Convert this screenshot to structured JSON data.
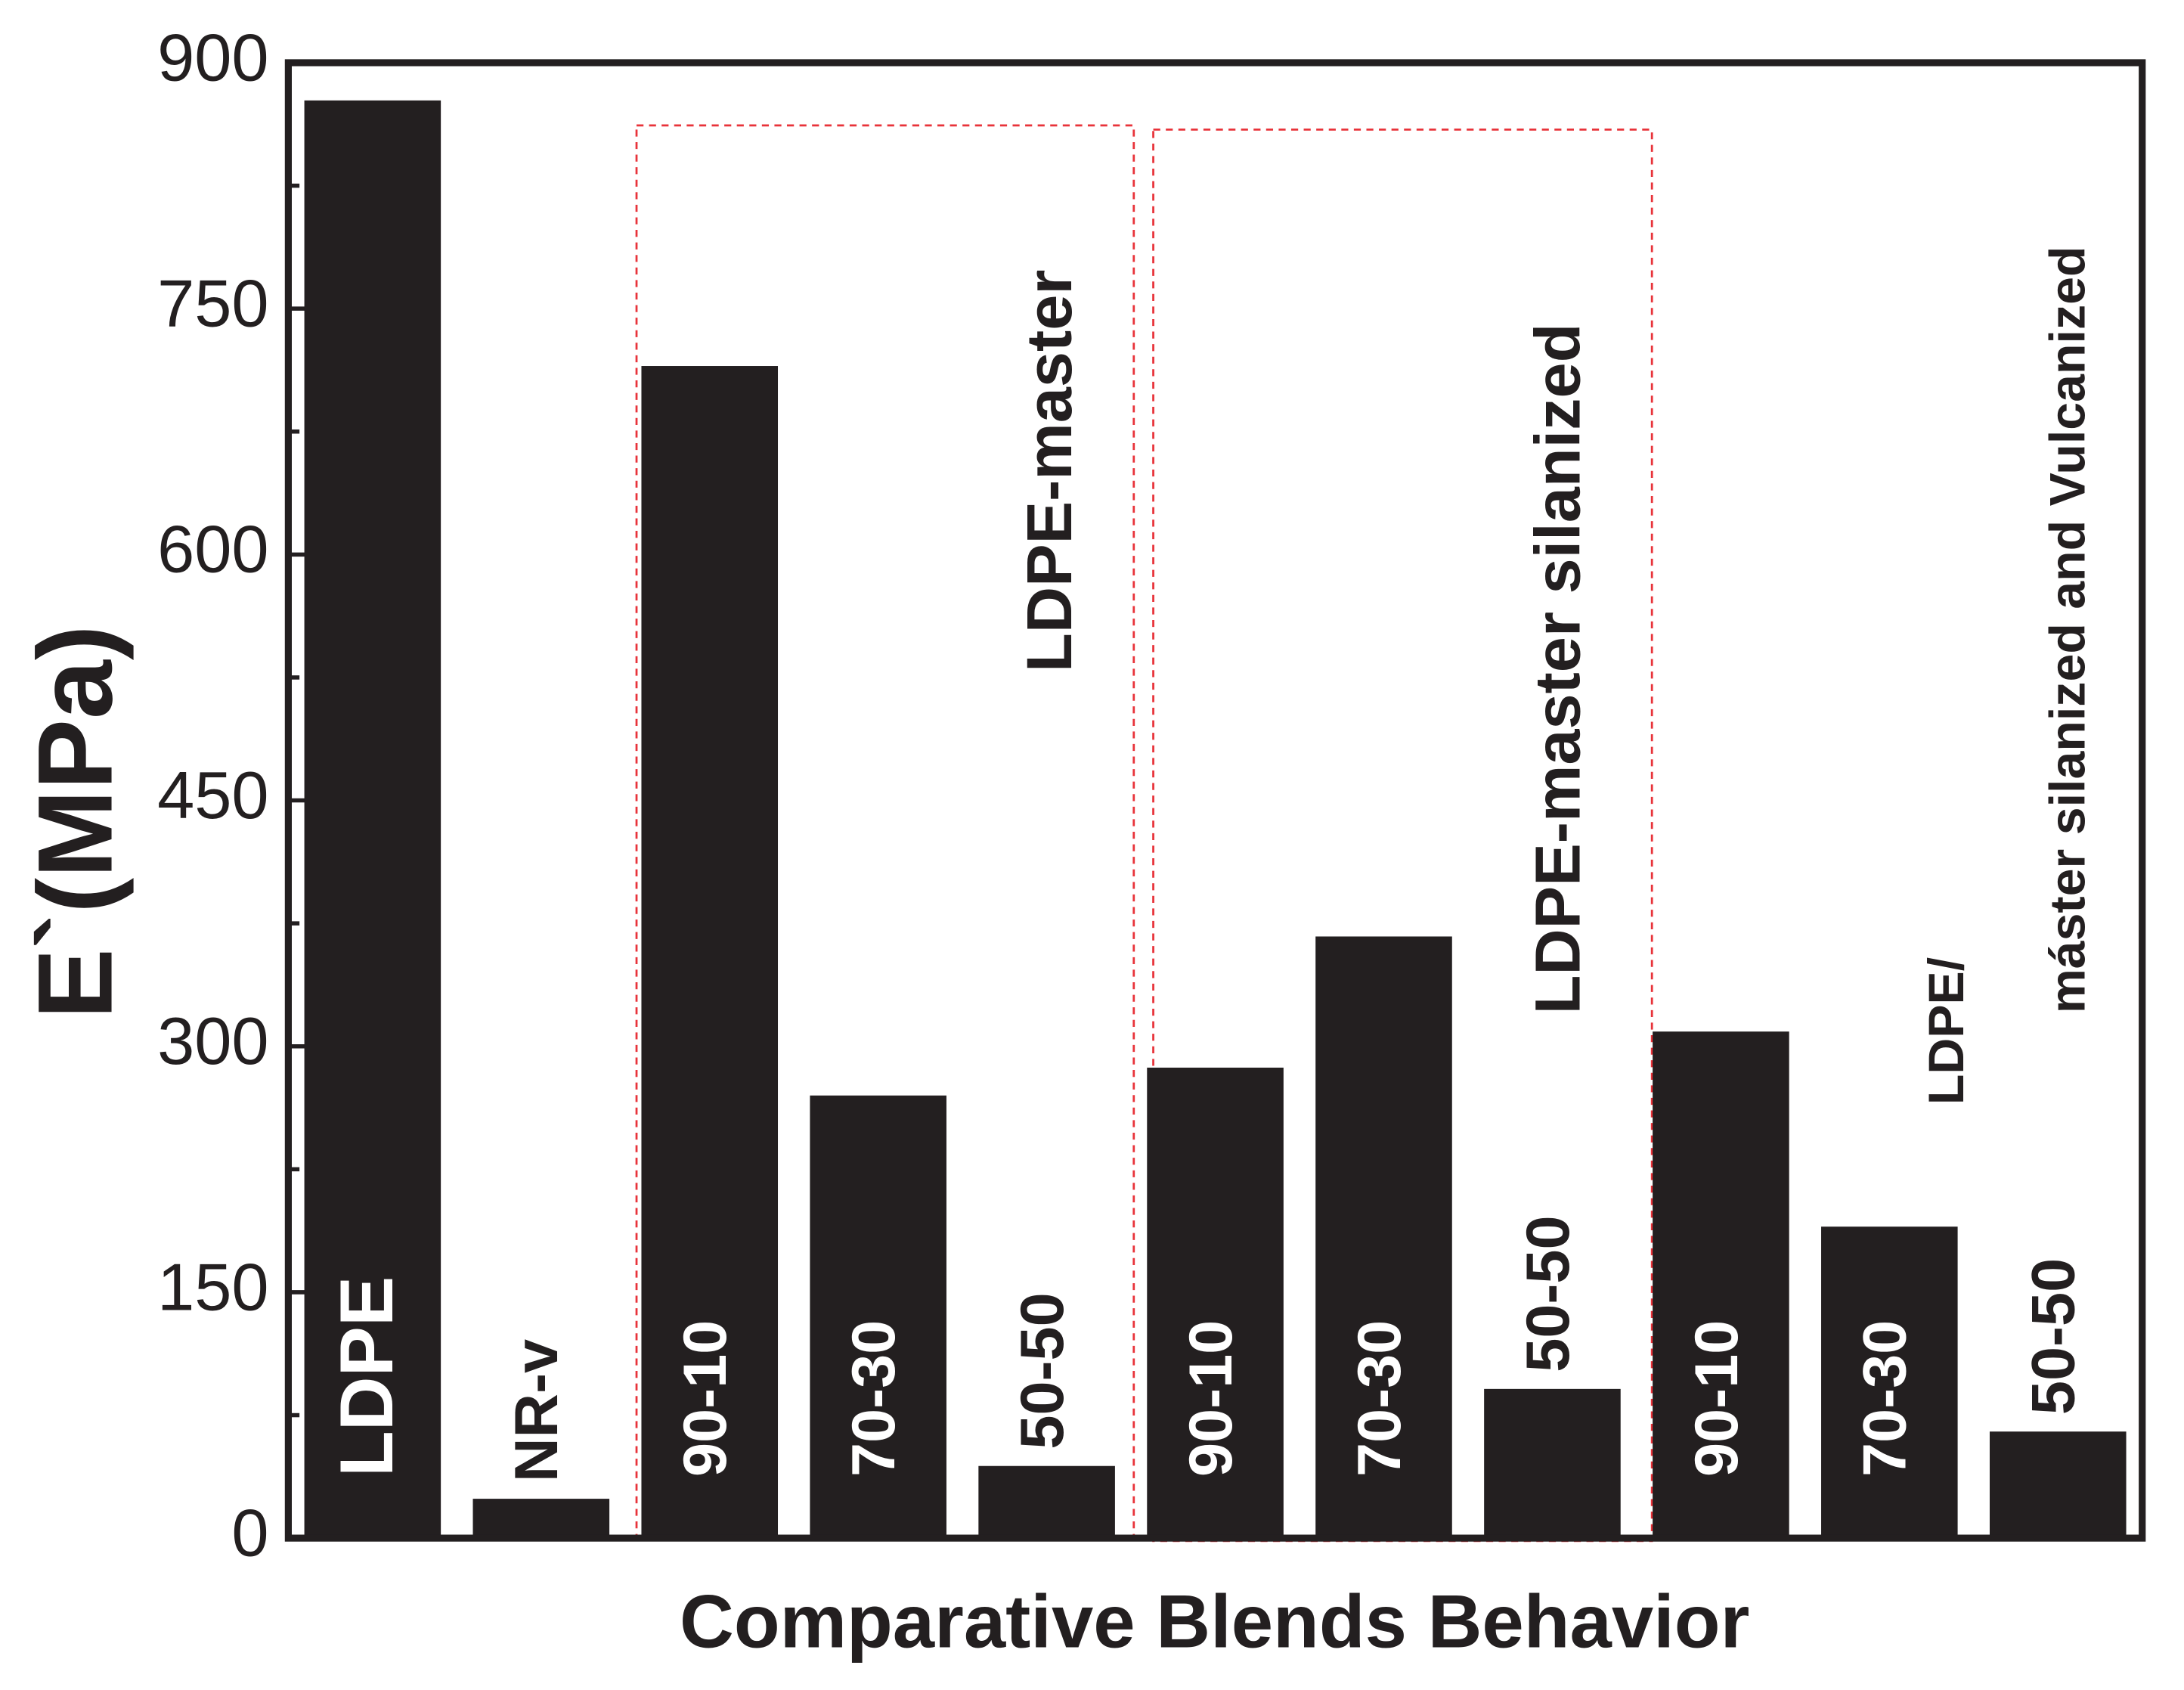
{
  "chart_data": {
    "type": "bar",
    "ylabel": "E`(MPa)",
    "xlabel": "Comparative Blends Behavior",
    "categories": [
      "LDPE",
      "NR-v",
      "90-10",
      "70-30",
      "50-50",
      "90-10",
      "70-30",
      "50-50",
      "90-10",
      "70-30",
      "50-50"
    ],
    "values": [
      877,
      24,
      715,
      270,
      44,
      287,
      367,
      91,
      309,
      190,
      65
    ],
    "color": "#231f20",
    "ylim": [
      0,
      900
    ],
    "yticks": [
      0,
      150,
      300,
      450,
      600,
      750,
      900
    ],
    "annotations": [
      "LDPE-master",
      "LDPE-master silanized",
      "LDPE/",
      "máster silanized and Vulcanized"
    ]
  }
}
